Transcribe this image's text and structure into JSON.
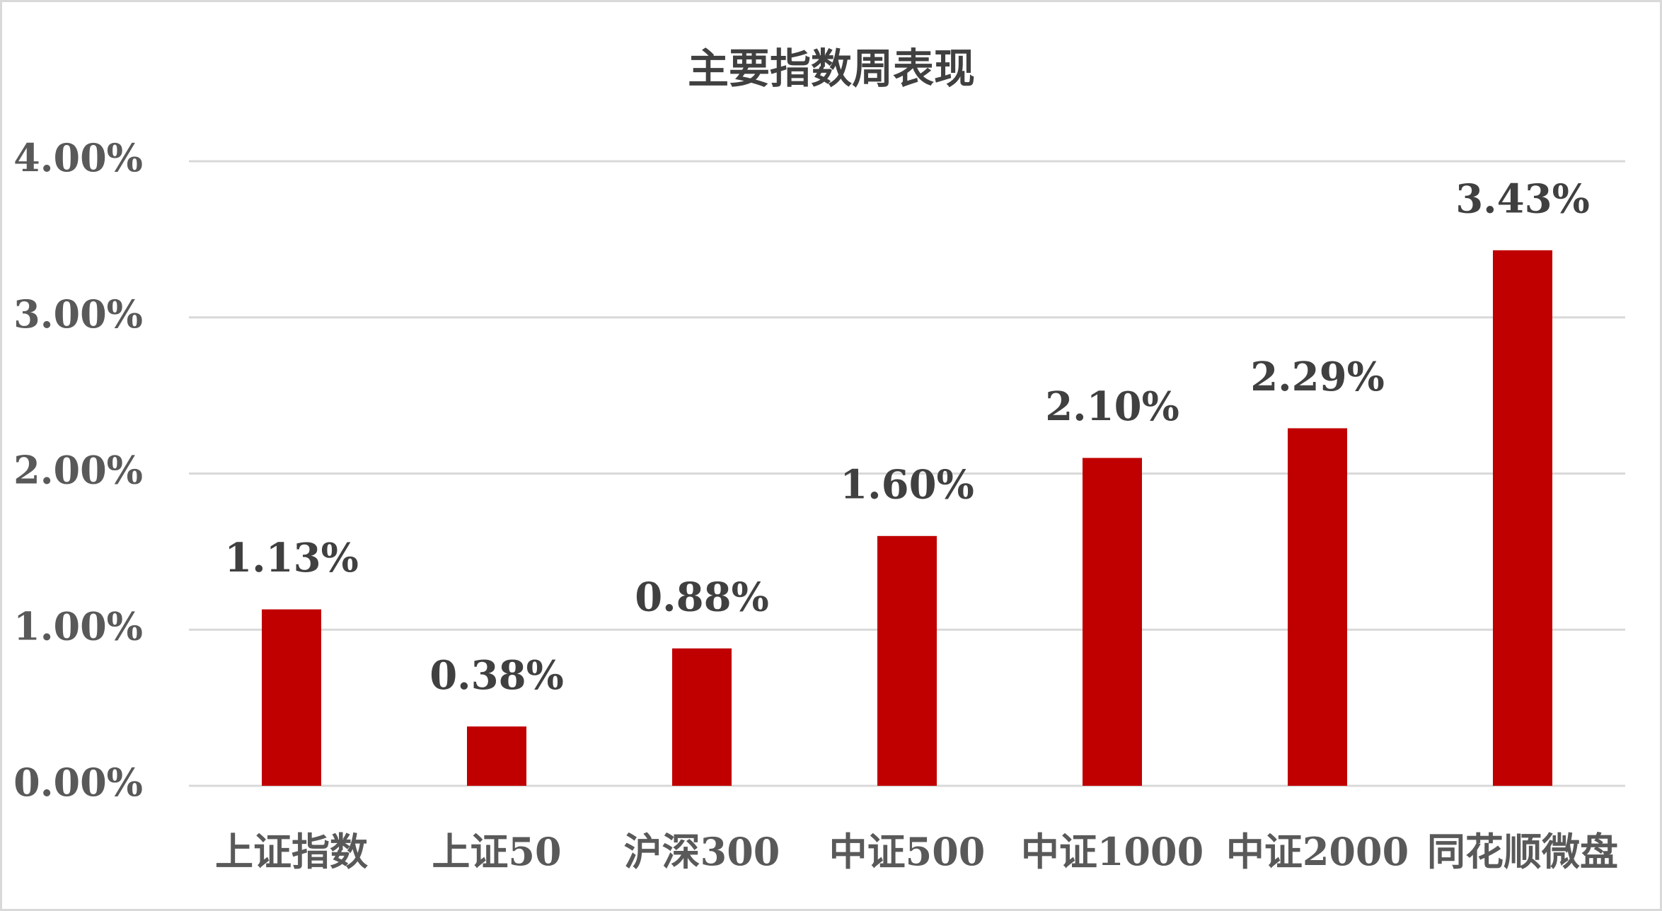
{
  "chart_data": {
    "type": "bar",
    "title": "主要指数周表现",
    "categories": [
      "上证指数",
      "上证50",
      "沪深300",
      "中证500",
      "中证1000",
      "中证2000",
      "同花顺微盘"
    ],
    "values": [
      1.13,
      0.38,
      0.88,
      1.6,
      2.1,
      2.29,
      3.43
    ],
    "value_labels": [
      "1.13%",
      "0.38%",
      "0.88%",
      "1.60%",
      "2.10%",
      "2.29%",
      "3.43%"
    ],
    "color": "#c00000",
    "ylim": [
      0,
      4
    ],
    "yticks": [
      {
        "value": 0,
        "label": "0.00%"
      },
      {
        "value": 1,
        "label": "1.00%"
      },
      {
        "value": 2,
        "label": "2.00%"
      },
      {
        "value": 3,
        "label": "3.00%"
      },
      {
        "value": 4,
        "label": "4.00%"
      }
    ],
    "grid": true
  }
}
